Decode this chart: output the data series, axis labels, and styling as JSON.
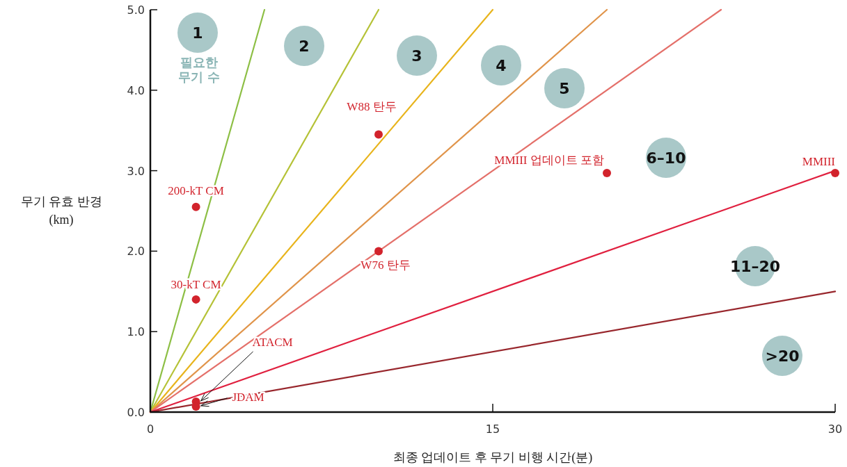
{
  "chart_data": {
    "type": "line",
    "xlabel": "최종 업데이트 후 무기 비행 시간(분)",
    "ylabel": "무기 유효 반경 (km)",
    "xlim": [
      0,
      30
    ],
    "xticks": [
      0,
      15,
      30
    ],
    "ylim": [
      0,
      5
    ],
    "yticks": [
      {
        "value": 0,
        "label": "0.0"
      },
      {
        "value": 1,
        "label": "1.0"
      },
      {
        "value": 2,
        "label": "2.0"
      },
      {
        "value": 3,
        "label": "3.0"
      },
      {
        "value": 4,
        "label": "4.0"
      },
      {
        "value": 5,
        "label": "5.0"
      }
    ],
    "series": [
      {
        "color": "#8dbf45",
        "x": [
          0,
          5
        ],
        "values": [
          0,
          5
        ]
      },
      {
        "color": "#b5c237",
        "x": [
          0,
          10
        ],
        "values": [
          0,
          5
        ]
      },
      {
        "color": "#e8b41c",
        "x": [
          0,
          15
        ],
        "values": [
          0,
          5
        ]
      },
      {
        "color": "#e0944a",
        "x": [
          0,
          20
        ],
        "values": [
          0,
          5
        ]
      },
      {
        "color": "#e4706a",
        "x": [
          0,
          25
        ],
        "values": [
          0,
          5
        ]
      },
      {
        "color": "#e0203f",
        "x": [
          0,
          30
        ],
        "values": [
          0,
          3
        ]
      },
      {
        "color": "#98262c",
        "x": [
          0,
          30
        ],
        "values": [
          0,
          1.5
        ]
      },
      {
        "type": "scatter",
        "name": "200-kT CM",
        "color": "#d2232c",
        "x": [
          2
        ],
        "values": [
          2.55
        ]
      },
      {
        "type": "scatter",
        "name": "30-kT CM",
        "color": "#d2232c",
        "x": [
          2
        ],
        "values": [
          1.4
        ]
      },
      {
        "type": "scatter",
        "name": "W88 탄두",
        "color": "#d2232c",
        "x": [
          10
        ],
        "values": [
          3.45
        ]
      },
      {
        "type": "scatter",
        "name": "W76 탄두",
        "color": "#d2232c",
        "x": [
          10
        ],
        "values": [
          2.0
        ]
      },
      {
        "type": "scatter",
        "name": "MMIII 업데이트 포함",
        "color": "#d2232c",
        "x": [
          20
        ],
        "values": [
          2.97
        ]
      },
      {
        "type": "scatter",
        "name": "MMIII",
        "color": "#d2232c",
        "x": [
          30
        ],
        "values": [
          2.97
        ]
      },
      {
        "type": "scatter",
        "name": "ATACM",
        "color": "#d2232c",
        "x": [
          2
        ],
        "values": [
          0.13
        ]
      },
      {
        "type": "scatter",
        "name": "JDAM",
        "color": "#d2232c",
        "x": [
          2
        ],
        "values": [
          0.07
        ]
      }
    ],
    "annotations": [
      "1",
      "필요한 무기 수",
      "2",
      "3",
      "4",
      "5",
      "6–10",
      "11–20",
      ">20"
    ]
  }
}
